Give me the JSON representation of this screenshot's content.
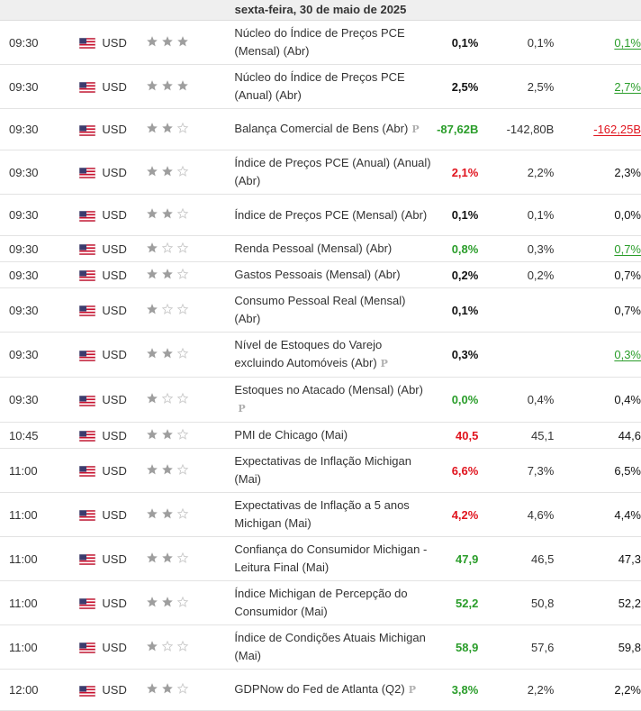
{
  "header": {
    "date": "sexta-feira, 30 de maio de 2025"
  },
  "colors": {
    "green": "#2a9d2a",
    "red": "#e0141e",
    "star_filled": "#9e9e9e",
    "star_empty": "#c8c8c8"
  },
  "events": [
    {
      "time": "09:30",
      "currency": "USD",
      "importance": 3,
      "name": "Núcleo do Índice de Preços PCE (Mensal) (Abr)",
      "prelim": false,
      "actual": "0,1%",
      "actual_color": "black",
      "forecast": "0,1%",
      "previous": "0,1%",
      "previous_style": "underline-green"
    },
    {
      "time": "09:30",
      "currency": "USD",
      "importance": 3,
      "name": "Núcleo do Índice de Preços PCE (Anual) (Abr)",
      "prelim": false,
      "actual": "2,5%",
      "actual_color": "black",
      "forecast": "2,5%",
      "previous": "2,7%",
      "previous_style": "underline-green"
    },
    {
      "time": "09:30",
      "currency": "USD",
      "importance": 2,
      "name": "Balança Comercial de Bens (Abr)",
      "prelim": true,
      "actual": "-87,62B",
      "actual_color": "green",
      "forecast": "-142,80B",
      "previous": "-162,25B",
      "previous_style": "underline-red"
    },
    {
      "time": "09:30",
      "currency": "USD",
      "importance": 2,
      "name": "Índice de Preços PCE (Anual) (Anual) (Abr)",
      "prelim": false,
      "actual": "2,1%",
      "actual_color": "red",
      "forecast": "2,2%",
      "previous": "2,3%",
      "previous_style": "black"
    },
    {
      "time": "09:30",
      "currency": "USD",
      "importance": 2,
      "name": "Índice de Preços PCE (Mensal) (Abr)",
      "prelim": false,
      "actual": "0,1%",
      "actual_color": "black",
      "forecast": "0,1%",
      "previous": "0,0%",
      "previous_style": "black"
    },
    {
      "time": "09:30",
      "currency": "USD",
      "importance": 1,
      "name": "Renda Pessoal (Mensal) (Abr)",
      "prelim": false,
      "actual": "0,8%",
      "actual_color": "green",
      "forecast": "0,3%",
      "previous": "0,7%",
      "previous_style": "underline-green"
    },
    {
      "time": "09:30",
      "currency": "USD",
      "importance": 2,
      "name": "Gastos Pessoais (Mensal) (Abr)",
      "prelim": false,
      "actual": "0,2%",
      "actual_color": "black",
      "forecast": "0,2%",
      "previous": "0,7%",
      "previous_style": "black"
    },
    {
      "time": "09:30",
      "currency": "USD",
      "importance": 1,
      "name": "Consumo Pessoal Real (Mensal) (Abr)",
      "prelim": false,
      "actual": "0,1%",
      "actual_color": "black",
      "forecast": "",
      "previous": "0,7%",
      "previous_style": "black"
    },
    {
      "time": "09:30",
      "currency": "USD",
      "importance": 2,
      "name": "Nível de Estoques do Varejo excluindo Automóveis (Abr)",
      "prelim": true,
      "actual": "0,3%",
      "actual_color": "black",
      "forecast": "",
      "previous": "0,3%",
      "previous_style": "underline-green"
    },
    {
      "time": "09:30",
      "currency": "USD",
      "importance": 1,
      "name": "Estoques no Atacado (Mensal) (Abr)",
      "prelim": true,
      "actual": "0,0%",
      "actual_color": "green",
      "forecast": "0,4%",
      "previous": "0,4%",
      "previous_style": "black"
    },
    {
      "time": "10:45",
      "currency": "USD",
      "importance": 2,
      "name": "PMI de Chicago (Mai)",
      "prelim": false,
      "actual": "40,5",
      "actual_color": "red",
      "forecast": "45,1",
      "previous": "44,6",
      "previous_style": "black"
    },
    {
      "time": "11:00",
      "currency": "USD",
      "importance": 2,
      "name": "Expectativas de Inflação Michigan (Mai)",
      "prelim": false,
      "actual": "6,6%",
      "actual_color": "red",
      "forecast": "7,3%",
      "previous": "6,5%",
      "previous_style": "black"
    },
    {
      "time": "11:00",
      "currency": "USD",
      "importance": 2,
      "name": "Expectativas de Inflação a 5 anos Michigan (Mai)",
      "prelim": false,
      "actual": "4,2%",
      "actual_color": "red",
      "forecast": "4,6%",
      "previous": "4,4%",
      "previous_style": "black"
    },
    {
      "time": "11:00",
      "currency": "USD",
      "importance": 2,
      "name": "Confiança do Consumidor Michigan - Leitura Final (Mai)",
      "prelim": false,
      "actual": "47,9",
      "actual_color": "green",
      "forecast": "46,5",
      "previous": "47,3",
      "previous_style": "black"
    },
    {
      "time": "11:00",
      "currency": "USD",
      "importance": 2,
      "name": "Índice Michigan de Percepção do Consumidor (Mai)",
      "prelim": false,
      "actual": "52,2",
      "actual_color": "green",
      "forecast": "50,8",
      "previous": "52,2",
      "previous_style": "black"
    },
    {
      "time": "11:00",
      "currency": "USD",
      "importance": 1,
      "name": "Índice de Condições Atuais Michigan (Mai)",
      "prelim": false,
      "actual": "58,9",
      "actual_color": "green",
      "forecast": "57,6",
      "previous": "59,8",
      "previous_style": "black"
    },
    {
      "time": "12:00",
      "currency": "USD",
      "importance": 2,
      "name": "GDPNow do Fed de Atlanta (Q2)",
      "prelim": true,
      "actual": "3,8%",
      "actual_color": "green",
      "forecast": "2,2%",
      "previous": "2,2%",
      "previous_style": "black"
    }
  ]
}
